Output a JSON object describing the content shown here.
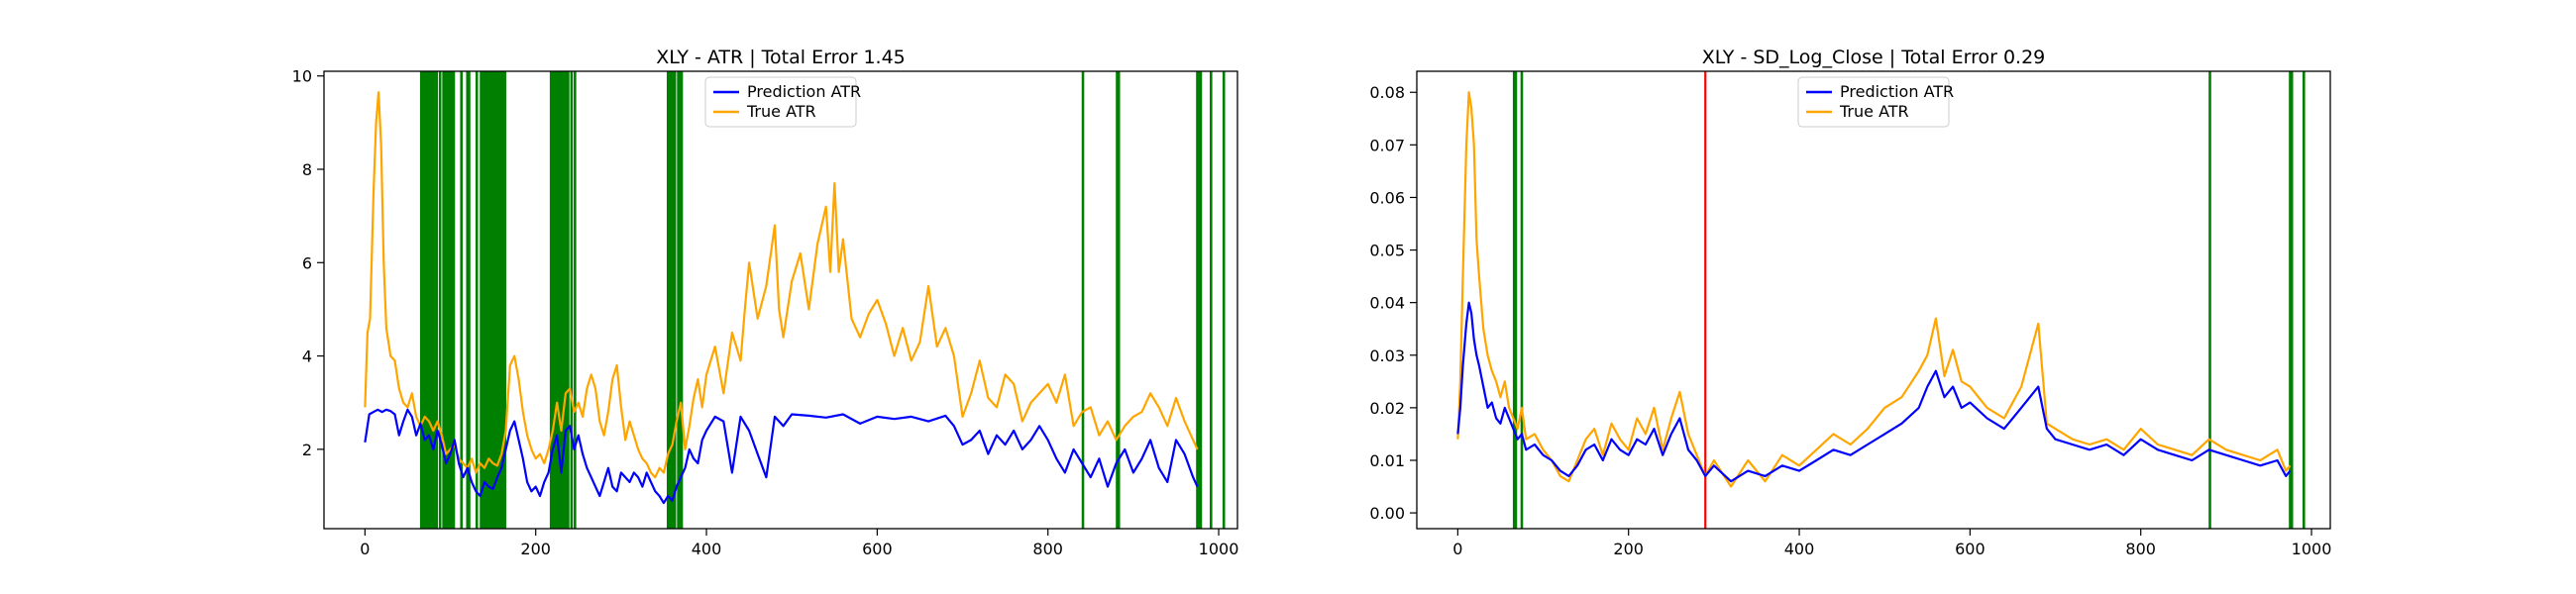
{
  "chart_data": [
    {
      "type": "line",
      "title": "XLY - ATR | Total Error 1.45",
      "xlabel": "",
      "ylabel": "",
      "xlim": [
        -48,
        1022
      ],
      "ylim": [
        0.3,
        10.1
      ],
      "x_ticks": [
        0,
        200,
        400,
        600,
        800,
        1000
      ],
      "y_ticks": [
        2,
        4,
        6,
        8,
        10
      ],
      "grid": false,
      "legend": {
        "placement": "upper-center",
        "entries": [
          "Prediction ATR",
          "True ATR"
        ]
      },
      "vlines": {
        "color": "#008000",
        "x": [
          66,
          68,
          70,
          72,
          74,
          76,
          78,
          80,
          82,
          84,
          88,
          92,
          94,
          96,
          98,
          100,
          102,
          104,
          113,
          120,
          122,
          131,
          136,
          138,
          140,
          142,
          144,
          146,
          148,
          150,
          152,
          154,
          156,
          158,
          160,
          162,
          164,
          218,
          220,
          222,
          224,
          226,
          228,
          230,
          232,
          234,
          236,
          238,
          242,
          246,
          355,
          357,
          359,
          361,
          363,
          367,
          369,
          371,
          841,
          881,
          883,
          975,
          977,
          979,
          991,
          1006
        ]
      },
      "series": [
        {
          "name": "Prediction ATR",
          "color": "#0000ff",
          "x": [
            0,
            5,
            10,
            15,
            20,
            25,
            30,
            35,
            40,
            45,
            50,
            55,
            60,
            65,
            70,
            75,
            80,
            85,
            90,
            95,
            100,
            105,
            110,
            115,
            120,
            125,
            130,
            135,
            140,
            145,
            150,
            155,
            160,
            165,
            170,
            175,
            180,
            185,
            190,
            195,
            200,
            205,
            210,
            215,
            220,
            225,
            230,
            235,
            240,
            245,
            250,
            255,
            260,
            265,
            270,
            275,
            280,
            285,
            290,
            295,
            300,
            305,
            310,
            315,
            320,
            325,
            330,
            335,
            340,
            345,
            350,
            355,
            360,
            365,
            370,
            375,
            380,
            385,
            390,
            395,
            400,
            410,
            420,
            430,
            440,
            450,
            460,
            470,
            480,
            490,
            500,
            520,
            540,
            560,
            580,
            600,
            620,
            640,
            660,
            680,
            690,
            700,
            710,
            720,
            730,
            740,
            750,
            760,
            770,
            780,
            790,
            800,
            810,
            820,
            830,
            840,
            850,
            860,
            870,
            880,
            890,
            900,
            910,
            920,
            930,
            940,
            950,
            960,
            970,
            975
          ],
          "values": [
            2.15,
            2.75,
            2.8,
            2.85,
            2.8,
            2.85,
            2.82,
            2.75,
            2.3,
            2.6,
            2.85,
            2.7,
            2.3,
            2.55,
            2.2,
            2.3,
            2.0,
            2.4,
            2.1,
            1.7,
            1.9,
            2.2,
            1.7,
            1.4,
            1.6,
            1.3,
            1.1,
            1.0,
            1.3,
            1.2,
            1.15,
            1.4,
            1.6,
            2.0,
            2.4,
            2.6,
            2.2,
            1.8,
            1.3,
            1.1,
            1.2,
            1.0,
            1.3,
            1.5,
            2.0,
            2.3,
            1.5,
            2.4,
            2.5,
            2.0,
            2.3,
            1.9,
            1.6,
            1.4,
            1.2,
            1.0,
            1.3,
            1.6,
            1.2,
            1.1,
            1.5,
            1.4,
            1.3,
            1.5,
            1.4,
            1.2,
            1.5,
            1.3,
            1.1,
            1.0,
            0.85,
            1.0,
            0.9,
            1.2,
            1.4,
            1.6,
            2.0,
            1.8,
            1.7,
            2.2,
            2.4,
            2.7,
            2.6,
            1.5,
            2.7,
            2.4,
            1.9,
            1.4,
            2.7,
            2.5,
            2.75,
            2.72,
            2.68,
            2.75,
            2.55,
            2.7,
            2.65,
            2.7,
            2.6,
            2.72,
            2.5,
            2.1,
            2.2,
            2.4,
            1.9,
            2.3,
            2.1,
            2.4,
            2.0,
            2.2,
            2.5,
            2.2,
            1.8,
            1.5,
            2.0,
            1.7,
            1.4,
            1.8,
            1.2,
            1.7,
            2.0,
            1.5,
            1.8,
            2.2,
            1.6,
            1.3,
            2.2,
            1.9,
            1.4,
            1.2
          ]
        },
        {
          "name": "True ATR",
          "color": "#ffa500",
          "x": [
            0,
            3,
            6,
            10,
            13,
            16,
            19,
            22,
            25,
            30,
            35,
            40,
            45,
            50,
            55,
            60,
            65,
            70,
            75,
            80,
            85,
            90,
            95,
            100,
            105,
            110,
            115,
            120,
            125,
            130,
            135,
            140,
            145,
            150,
            155,
            160,
            165,
            170,
            175,
            180,
            185,
            190,
            195,
            200,
            205,
            210,
            215,
            220,
            225,
            230,
            235,
            240,
            245,
            250,
            255,
            260,
            265,
            270,
            275,
            280,
            285,
            290,
            295,
            300,
            305,
            310,
            315,
            320,
            325,
            330,
            335,
            340,
            345,
            350,
            355,
            360,
            365,
            370,
            375,
            380,
            385,
            390,
            395,
            400,
            410,
            420,
            430,
            440,
            445,
            450,
            460,
            470,
            480,
            485,
            490,
            500,
            510,
            520,
            530,
            540,
            545,
            550,
            555,
            560,
            570,
            580,
            590,
            600,
            610,
            620,
            630,
            640,
            650,
            660,
            670,
            680,
            690,
            700,
            710,
            720,
            730,
            740,
            750,
            760,
            770,
            780,
            790,
            800,
            810,
            820,
            830,
            840,
            850,
            860,
            870,
            880,
            890,
            900,
            910,
            920,
            930,
            940,
            950,
            960,
            970,
            975
          ],
          "values": [
            2.9,
            4.5,
            4.8,
            7.5,
            9.0,
            9.65,
            8.5,
            6.0,
            4.6,
            4.0,
            3.9,
            3.3,
            3.0,
            2.9,
            3.2,
            2.7,
            2.5,
            2.7,
            2.6,
            2.4,
            2.6,
            2.3,
            1.9,
            2.0,
            2.1,
            1.8,
            1.7,
            1.6,
            1.8,
            1.5,
            1.7,
            1.6,
            1.8,
            1.7,
            1.65,
            1.9,
            2.4,
            3.8,
            4.0,
            3.5,
            2.8,
            2.3,
            2.0,
            1.8,
            1.9,
            1.7,
            2.0,
            2.4,
            3.0,
            2.4,
            3.2,
            3.3,
            2.8,
            3.0,
            2.7,
            3.3,
            3.6,
            3.3,
            2.6,
            2.3,
            2.8,
            3.5,
            3.8,
            2.9,
            2.2,
            2.6,
            2.3,
            2.0,
            1.8,
            1.7,
            1.5,
            1.4,
            1.6,
            1.5,
            1.9,
            2.1,
            2.6,
            3.0,
            2.0,
            2.5,
            3.1,
            3.5,
            2.9,
            3.6,
            4.2,
            3.2,
            4.5,
            3.9,
            5.0,
            6.0,
            4.8,
            5.5,
            6.8,
            5.0,
            4.4,
            5.6,
            6.2,
            5.0,
            6.4,
            7.2,
            5.8,
            7.7,
            5.8,
            6.5,
            4.8,
            4.4,
            4.9,
            5.2,
            4.7,
            4.0,
            4.6,
            3.9,
            4.3,
            5.5,
            4.2,
            4.6,
            4.0,
            2.7,
            3.2,
            3.9,
            3.1,
            2.9,
            3.6,
            3.4,
            2.6,
            3.0,
            3.2,
            3.4,
            3.0,
            3.6,
            2.5,
            2.8,
            2.9,
            2.3,
            2.6,
            2.2,
            2.5,
            2.7,
            2.8,
            3.2,
            2.9,
            2.5,
            3.1,
            2.6,
            2.2,
            2.0
          ]
        }
      ]
    },
    {
      "type": "line",
      "title": "XLY - SD_Log_Close | Total Error 0.29",
      "xlabel": "",
      "ylabel": "",
      "xlim": [
        -48,
        1022
      ],
      "ylim": [
        -0.003,
        0.084
      ],
      "x_ticks": [
        0,
        200,
        400,
        600,
        800,
        1000
      ],
      "y_ticks": [
        0.0,
        0.01,
        0.02,
        0.03,
        0.04,
        0.05,
        0.06,
        0.07,
        0.08
      ],
      "y_tick_labels": [
        "0.00",
        "0.01",
        "0.02",
        "0.03",
        "0.04",
        "0.05",
        "0.06",
        "0.07",
        "0.08"
      ],
      "grid": false,
      "legend": {
        "placement": "upper-center",
        "entries": [
          "Prediction ATR",
          "True ATR"
        ]
      },
      "vlines": {
        "color": "#008000",
        "x": [
          66,
          68,
          75,
          881,
          975,
          977,
          991
        ]
      },
      "vlines_red": {
        "color": "#ff0000",
        "x": [
          290
        ]
      },
      "series": [
        {
          "name": "Prediction ATR",
          "color": "#0000ff",
          "x": [
            0,
            3,
            6,
            10,
            13,
            16,
            19,
            22,
            25,
            30,
            35,
            40,
            45,
            50,
            55,
            60,
            65,
            70,
            75,
            80,
            90,
            100,
            110,
            120,
            130,
            140,
            150,
            160,
            170,
            180,
            190,
            200,
            210,
            220,
            230,
            240,
            250,
            260,
            270,
            280,
            290,
            300,
            320,
            340,
            360,
            380,
            400,
            420,
            440,
            460,
            480,
            500,
            520,
            540,
            550,
            560,
            570,
            580,
            590,
            600,
            620,
            640,
            660,
            680,
            690,
            700,
            720,
            740,
            760,
            780,
            800,
            820,
            840,
            860,
            880,
            900,
            920,
            940,
            960,
            970,
            975
          ],
          "values": [
            0.015,
            0.02,
            0.028,
            0.036,
            0.04,
            0.038,
            0.033,
            0.03,
            0.028,
            0.024,
            0.02,
            0.021,
            0.018,
            0.017,
            0.02,
            0.018,
            0.016,
            0.014,
            0.015,
            0.012,
            0.013,
            0.011,
            0.01,
            0.008,
            0.007,
            0.009,
            0.012,
            0.013,
            0.01,
            0.014,
            0.012,
            0.011,
            0.014,
            0.013,
            0.016,
            0.011,
            0.015,
            0.018,
            0.012,
            0.01,
            0.007,
            0.009,
            0.006,
            0.008,
            0.007,
            0.009,
            0.008,
            0.01,
            0.012,
            0.011,
            0.013,
            0.015,
            0.017,
            0.02,
            0.024,
            0.027,
            0.022,
            0.024,
            0.02,
            0.021,
            0.018,
            0.016,
            0.02,
            0.024,
            0.016,
            0.014,
            0.013,
            0.012,
            0.013,
            0.011,
            0.014,
            0.012,
            0.011,
            0.01,
            0.012,
            0.011,
            0.01,
            0.009,
            0.01,
            0.007,
            0.008
          ]
        },
        {
          "name": "True ATR",
          "color": "#ffa500",
          "x": [
            0,
            3,
            6,
            10,
            13,
            16,
            19,
            22,
            25,
            30,
            35,
            40,
            45,
            50,
            55,
            60,
            65,
            70,
            75,
            80,
            90,
            100,
            110,
            120,
            130,
            140,
            150,
            160,
            170,
            180,
            190,
            200,
            210,
            220,
            230,
            240,
            250,
            260,
            270,
            280,
            290,
            300,
            320,
            340,
            360,
            380,
            400,
            420,
            440,
            460,
            480,
            500,
            520,
            540,
            550,
            560,
            570,
            580,
            590,
            600,
            620,
            640,
            660,
            680,
            690,
            700,
            720,
            740,
            760,
            780,
            800,
            820,
            840,
            860,
            880,
            900,
            920,
            940,
            960,
            970,
            975
          ],
          "values": [
            0.014,
            0.025,
            0.045,
            0.07,
            0.08,
            0.077,
            0.07,
            0.052,
            0.045,
            0.035,
            0.03,
            0.027,
            0.025,
            0.022,
            0.025,
            0.02,
            0.018,
            0.016,
            0.02,
            0.014,
            0.015,
            0.012,
            0.01,
            0.007,
            0.006,
            0.01,
            0.014,
            0.016,
            0.011,
            0.017,
            0.014,
            0.012,
            0.018,
            0.015,
            0.02,
            0.012,
            0.018,
            0.023,
            0.015,
            0.011,
            0.007,
            0.01,
            0.005,
            0.01,
            0.006,
            0.011,
            0.009,
            0.012,
            0.015,
            0.013,
            0.016,
            0.02,
            0.022,
            0.027,
            0.03,
            0.037,
            0.026,
            0.031,
            0.025,
            0.024,
            0.02,
            0.018,
            0.024,
            0.036,
            0.017,
            0.016,
            0.014,
            0.013,
            0.014,
            0.012,
            0.016,
            0.013,
            0.012,
            0.011,
            0.014,
            0.012,
            0.011,
            0.01,
            0.012,
            0.008,
            0.009
          ]
        }
      ]
    }
  ]
}
